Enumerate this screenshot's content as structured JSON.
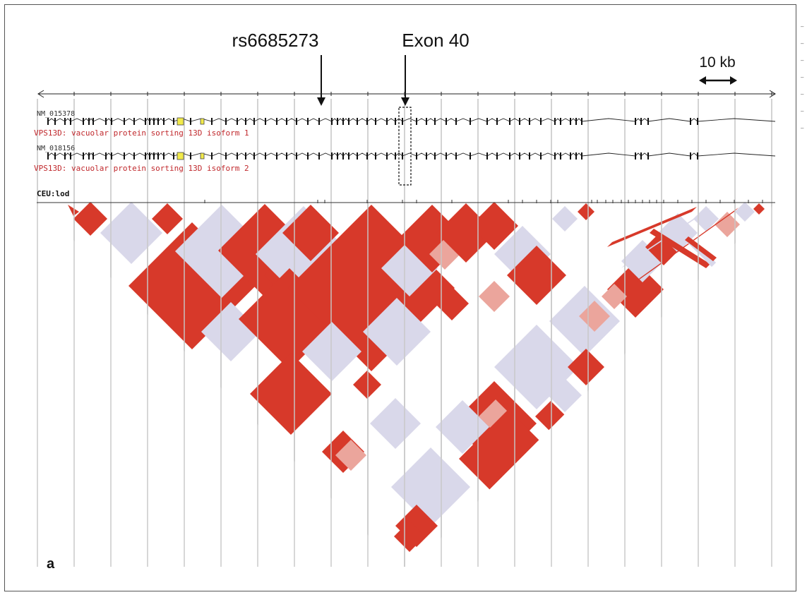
{
  "annotations": {
    "snp_label": "rs6685273",
    "exon_label": "Exon 40",
    "scale_label": "10 kb"
  },
  "tracks": [
    {
      "accession": "NM_015378",
      "description": "VPS13D: vacuolar protein sorting 13D isoform 1"
    },
    {
      "accession": "NM_018156",
      "description": "VPS13D: vacuolar protein sorting 13D isoform 2"
    }
  ],
  "ld_track_label": "CEU:lod",
  "panel_letter": "a",
  "colors": {
    "high_ld": "#d7392a",
    "low_ld": "#d9d8ea",
    "mid_ld": "#eba59c",
    "description_text": "#c0282c"
  },
  "edge_marks": [
    "–",
    "–",
    "–",
    "–",
    "–",
    "–",
    "–"
  ]
}
